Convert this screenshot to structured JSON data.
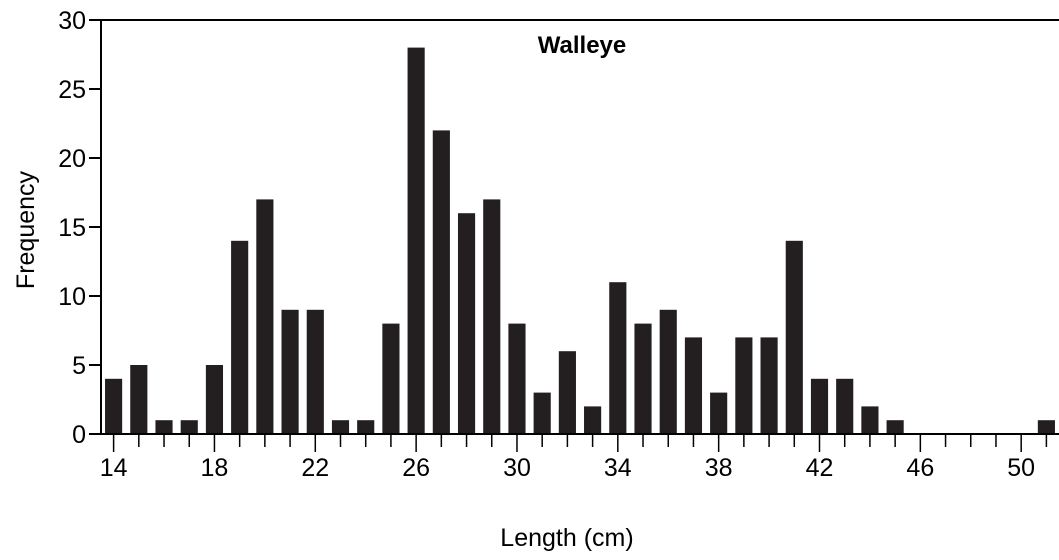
{
  "chart_data": {
    "type": "bar",
    "title": "Walleye",
    "xlabel": "Length (cm)",
    "ylabel": "Frequency",
    "x": [
      14,
      15,
      16,
      17,
      18,
      19,
      20,
      21,
      22,
      23,
      24,
      25,
      26,
      27,
      28,
      29,
      30,
      31,
      32,
      33,
      34,
      35,
      36,
      37,
      38,
      39,
      40,
      41,
      42,
      43,
      44,
      45,
      46,
      47,
      48,
      49,
      50,
      51
    ],
    "values": [
      4,
      5,
      1,
      1,
      5,
      14,
      17,
      9,
      9,
      1,
      1,
      8,
      28,
      22,
      16,
      17,
      8,
      3,
      6,
      2,
      11,
      8,
      9,
      7,
      3,
      7,
      7,
      14,
      4,
      4,
      2,
      1,
      0,
      0,
      0,
      0,
      0,
      1
    ],
    "xlim": [
      13.5,
      51.5
    ],
    "ylim": [
      0,
      30
    ],
    "x_tick_labels": [
      "14",
      "18",
      "22",
      "26",
      "30",
      "34",
      "38",
      "42",
      "46",
      "50"
    ],
    "y_tick_labels": [
      "0",
      "5",
      "10",
      "15",
      "20",
      "25",
      "30"
    ],
    "bar_color": "#231f20",
    "grid": false,
    "legend": false
  }
}
